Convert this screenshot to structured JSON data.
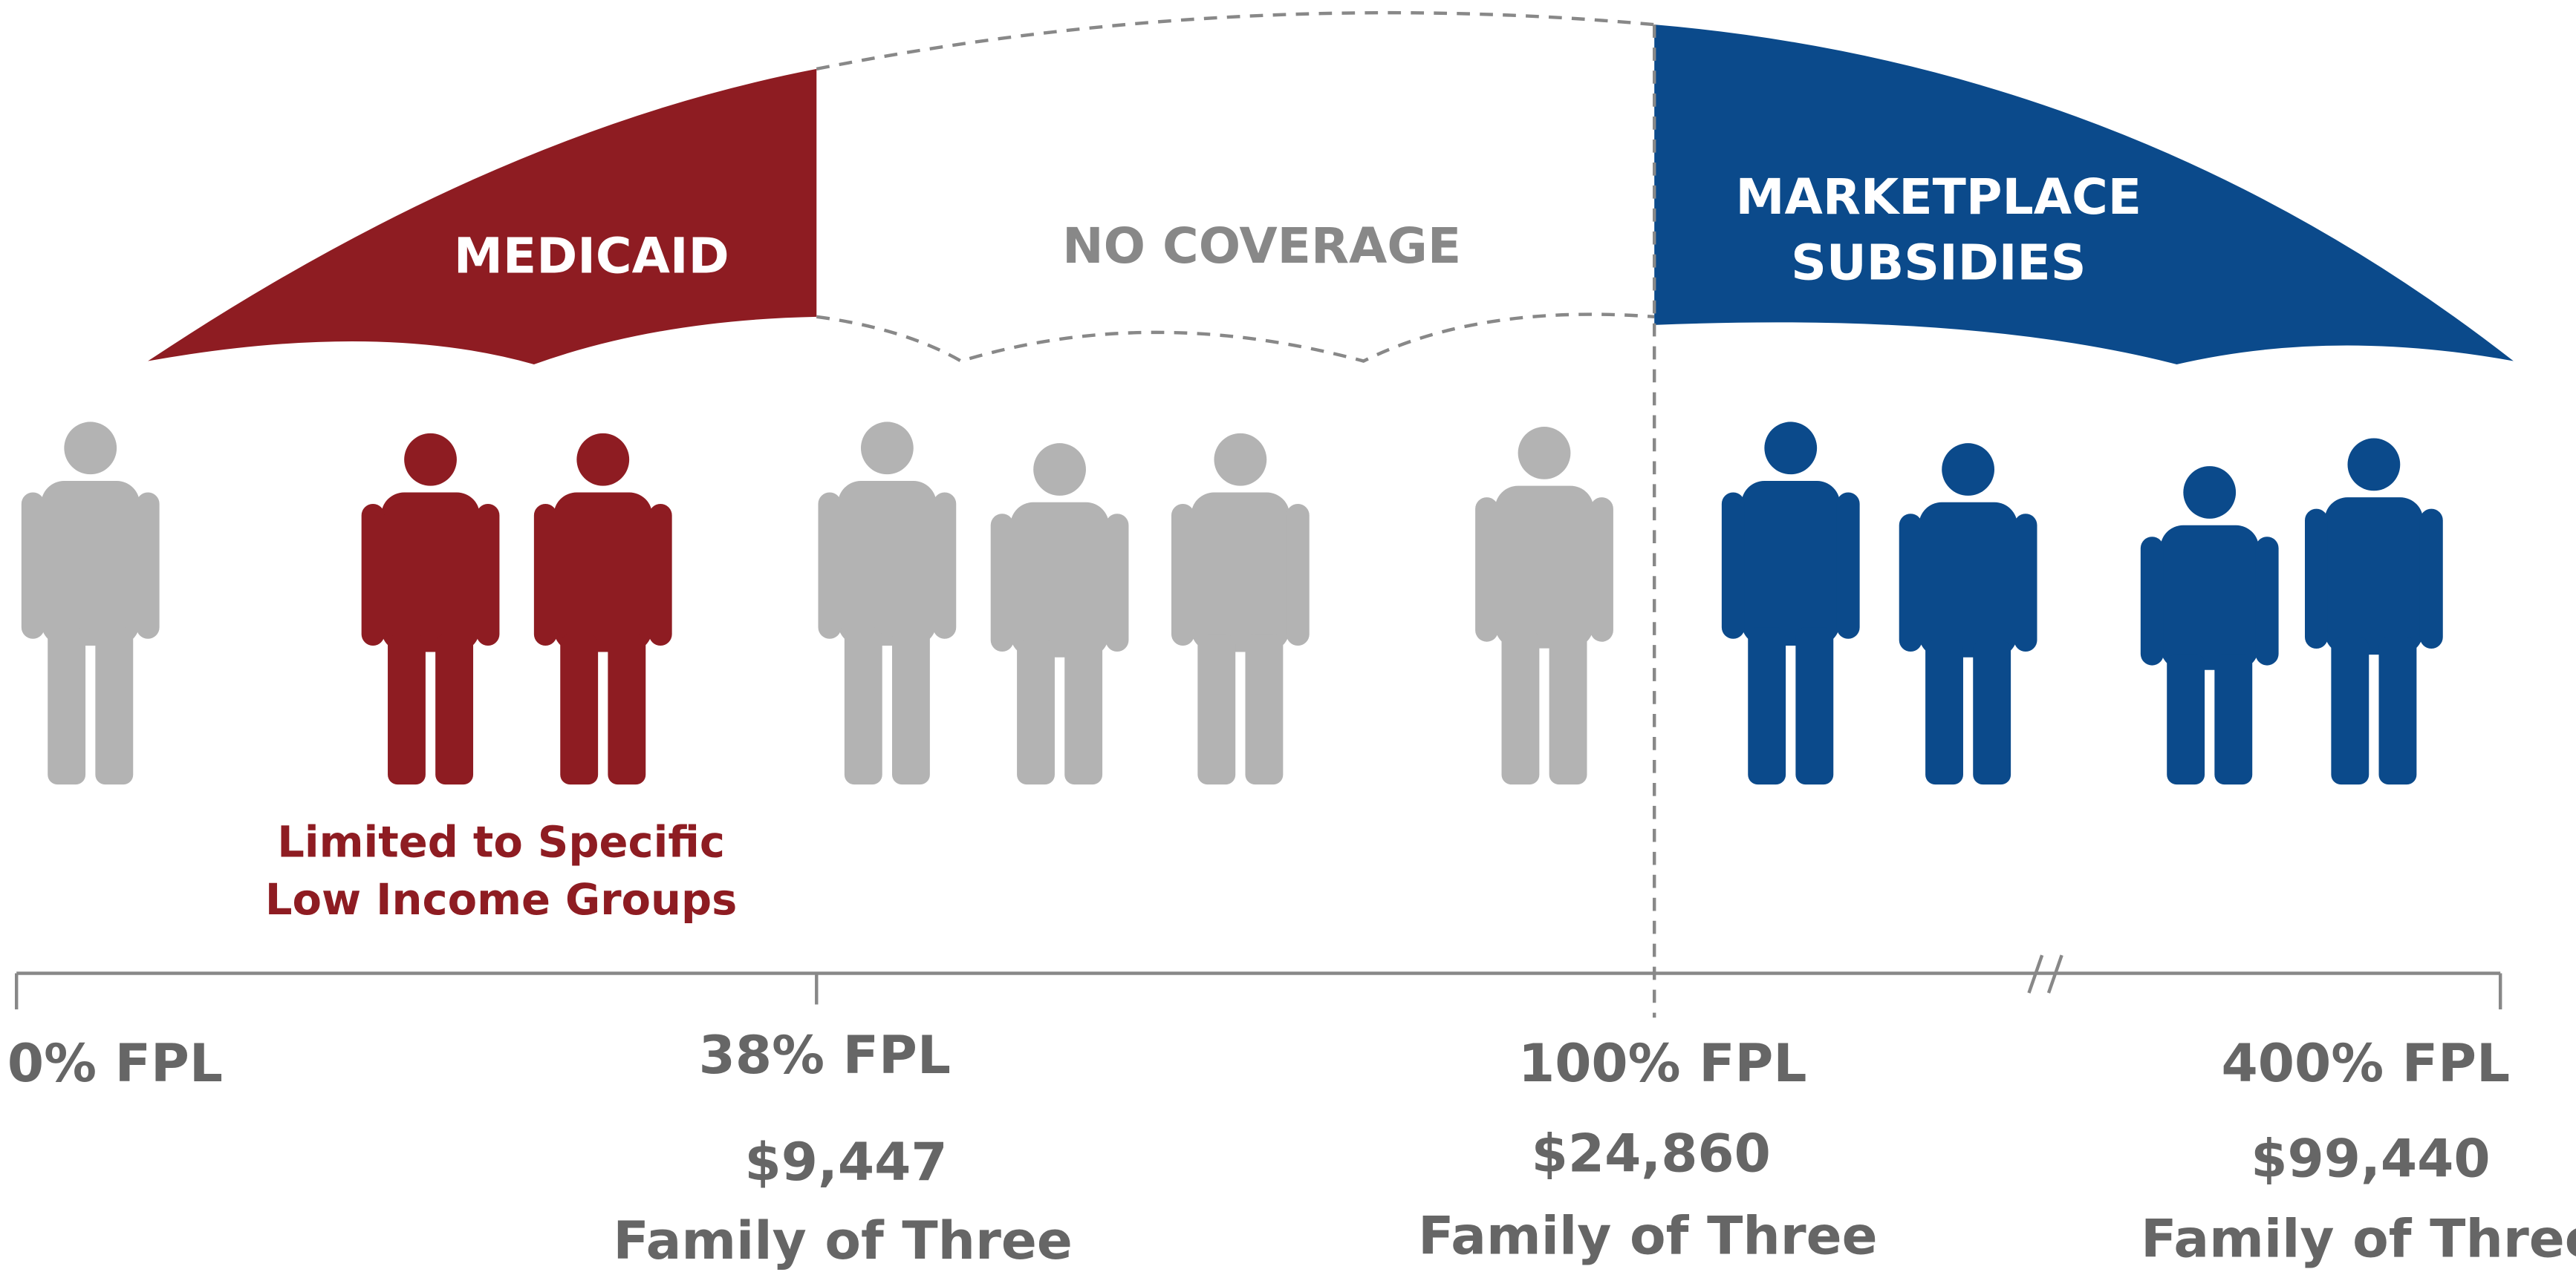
{
  "bands": [
    {
      "lines": [
        "MEDICAID"
      ]
    },
    {
      "lines": [
        "NO COVERAGE"
      ]
    },
    {
      "lines": [
        "MARKETPLACE",
        "SUBSIDIES"
      ]
    }
  ],
  "note": [
    "Limited to Specific",
    "Low Income Groups"
  ],
  "axis": [
    {
      "label": "0% FPL"
    },
    {
      "label": "38% FPL",
      "amount": "$9,447",
      "caption": "Family of Three"
    },
    {
      "label": "100% FPL",
      "amount": "$24,860",
      "caption": "Family of Three"
    },
    {
      "label": "400% FPL",
      "amount": "$99,440",
      "caption": "Family of Three"
    }
  ]
}
